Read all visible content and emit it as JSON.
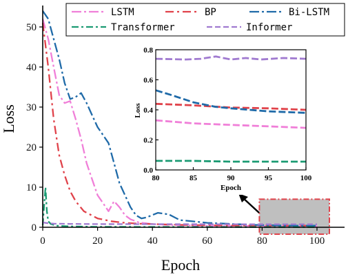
{
  "chart_data": [
    {
      "type": "line",
      "xlabel": "Epoch",
      "ylabel": "Loss",
      "xlim": [
        0,
        100
      ],
      "ylim": [
        0,
        55
      ],
      "xticks": [
        0,
        20,
        40,
        60,
        80,
        100
      ],
      "yticks": [
        0,
        10,
        20,
        30,
        40,
        50
      ],
      "xtick_labels": [
        "0",
        "20",
        "40",
        "60",
        "80",
        "100"
      ],
      "ytick_labels": [
        "0",
        "10",
        "20",
        "30",
        "40",
        "50"
      ],
      "grid": false,
      "legend_position": "top",
      "highlight_region": {
        "x": [
          80,
          100
        ],
        "y": [
          0,
          7
        ],
        "color": "#bfbfbf",
        "border_color": "#e0424a"
      },
      "series": [
        {
          "name": "LSTM",
          "color": "#f07fd8",
          "dash": "14 4 3 4",
          "x": [
            0,
            2,
            4,
            6,
            8,
            10,
            12,
            14,
            16,
            18,
            20,
            22,
            24,
            26,
            28,
            30,
            32,
            35,
            40,
            45,
            50,
            60,
            70,
            80,
            90,
            100
          ],
          "y": [
            52,
            47,
            40,
            33,
            31,
            31.5,
            27,
            22,
            16,
            12,
            8,
            6,
            4,
            6.5,
            5,
            3,
            2,
            1.2,
            0.8,
            0.6,
            0.5,
            0.4,
            0.35,
            0.33,
            0.3,
            0.28
          ]
        },
        {
          "name": "BP",
          "color": "#e0424a",
          "dash": "12 5 3 5",
          "x": [
            0,
            2,
            4,
            6,
            8,
            10,
            12,
            15,
            20,
            25,
            30,
            35,
            40,
            50,
            60,
            70,
            80,
            90,
            100
          ],
          "y": [
            51,
            40,
            27,
            18,
            13,
            9,
            6.5,
            4,
            2.2,
            1.5,
            1.1,
            0.9,
            0.8,
            0.6,
            0.5,
            0.45,
            0.44,
            0.42,
            0.4
          ]
        },
        {
          "name": "Bi-LSTM",
          "color": "#1f6aa8",
          "dash": "14 4 3 4",
          "x": [
            0,
            2,
            4,
            6,
            8,
            10,
            12,
            14,
            16,
            18,
            20,
            22,
            24,
            26,
            28,
            30,
            32,
            34,
            36,
            38,
            42,
            46,
            50,
            56,
            60,
            70,
            80,
            90,
            100
          ],
          "y": [
            54,
            52,
            47,
            42,
            36,
            32,
            32.5,
            33.5,
            31,
            28,
            25,
            23,
            21,
            16,
            11,
            8,
            5,
            3,
            2.2,
            2.5,
            3.6,
            3.2,
            1.8,
            1.4,
            1.1,
            0.8,
            0.53,
            0.42,
            0.39
          ]
        },
        {
          "name": "Transformer",
          "color": "#1a9a72",
          "dash": "10 4 3 4",
          "x": [
            0,
            1,
            1.5,
            2,
            3,
            5,
            10,
            20,
            40,
            60,
            80,
            90,
            100
          ],
          "y": [
            0.5,
            10,
            4,
            1.5,
            0.8,
            0.4,
            0.2,
            0.1,
            0.08,
            0.07,
            0.06,
            0.06,
            0.05
          ]
        },
        {
          "name": "Informer",
          "color": "#a07ad0",
          "dash": "8 4",
          "x": [
            0,
            2,
            4,
            10,
            20,
            40,
            60,
            80,
            90,
            100
          ],
          "y": [
            1.2,
            1.0,
            0.9,
            0.85,
            0.8,
            0.78,
            0.76,
            0.74,
            0.75,
            0.74
          ]
        }
      ]
    },
    {
      "type": "line",
      "xlabel": "Epoch",
      "ylabel": "Loss",
      "xlim": [
        80,
        100
      ],
      "ylim": [
        0,
        0.8
      ],
      "xticks": [
        80,
        85,
        90,
        95,
        100
      ],
      "yticks": [
        0.0,
        0.2,
        0.4,
        0.6,
        0.8
      ],
      "xtick_labels": [
        "80",
        "85",
        "90",
        "95",
        "100"
      ],
      "ytick_labels": [
        "0.0",
        "0.2",
        "0.4",
        "0.6",
        "0.8"
      ],
      "grid": false,
      "series": [
        {
          "name": "LSTM",
          "color": "#f07fd8",
          "dash": "10 4",
          "x": [
            80,
            85,
            90,
            95,
            100
          ],
          "y": [
            0.33,
            0.31,
            0.3,
            0.29,
            0.28
          ]
        },
        {
          "name": "BP",
          "color": "#e0424a",
          "dash": "10 4",
          "x": [
            80,
            85,
            90,
            95,
            100
          ],
          "y": [
            0.44,
            0.43,
            0.415,
            0.41,
            0.4
          ]
        },
        {
          "name": "Bi-LSTM",
          "color": "#1f6aa8",
          "dash": "10 4",
          "x": [
            80,
            82,
            85,
            88,
            90,
            95,
            100
          ],
          "y": [
            0.53,
            0.5,
            0.45,
            0.42,
            0.41,
            0.39,
            0.38
          ]
        },
        {
          "name": "Transformer",
          "color": "#1a9a72",
          "dash": "10 4",
          "x": [
            80,
            85,
            90,
            95,
            100
          ],
          "y": [
            0.06,
            0.06,
            0.055,
            0.055,
            0.055
          ]
        },
        {
          "name": "Informer",
          "color": "#a07ad0",
          "dash": "10 4",
          "x": [
            80,
            84,
            86,
            88,
            90,
            92,
            94,
            97,
            100
          ],
          "y": [
            0.74,
            0.735,
            0.74,
            0.755,
            0.735,
            0.745,
            0.735,
            0.745,
            0.74
          ]
        }
      ]
    }
  ]
}
